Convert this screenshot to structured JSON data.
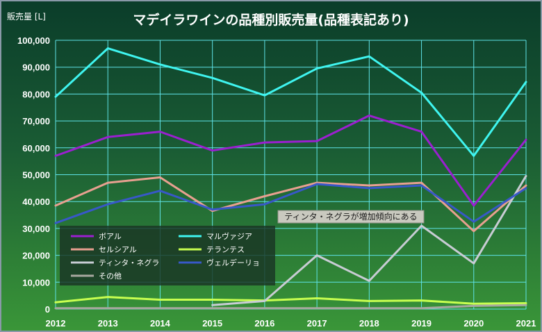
{
  "chart_data": {
    "type": "line",
    "title": "マデイラワインの品種別販売量(品種表記あり)",
    "ylabel": "販売量 [L]",
    "xlabel": "",
    "x": [
      2012,
      2013,
      2014,
      2015,
      2016,
      2017,
      2018,
      2019,
      2020,
      2021
    ],
    "x_tick_labels": [
      "2012",
      "2013",
      "2014",
      "2015",
      "2016",
      "2017",
      "2018",
      "2019",
      "2020",
      "2021"
    ],
    "ylim": [
      0,
      100000
    ],
    "y_ticks": [
      0,
      10000,
      20000,
      30000,
      40000,
      50000,
      60000,
      70000,
      80000,
      90000,
      100000
    ],
    "y_tick_labels": [
      "0",
      "10,000",
      "20,000",
      "30,000",
      "40,000",
      "50,000",
      "60,000",
      "70,000",
      "80,000",
      "90,000",
      "100,000"
    ],
    "grid": true,
    "legend_position": "bottom-left",
    "series": [
      {
        "name": "ボアル",
        "color": "#9b1fd0",
        "values": [
          57000,
          64000,
          66000,
          59000,
          62000,
          62500,
          72000,
          66000,
          38500,
          63000
        ]
      },
      {
        "name": "マルヴァジア",
        "color": "#3ff5f0",
        "values": [
          79000,
          97000,
          91000,
          86000,
          79500,
          89500,
          94000,
          80500,
          57000,
          84500
        ]
      },
      {
        "name": "セルシアル",
        "color": "#e8a090",
        "values": [
          38500,
          47000,
          49000,
          36500,
          42000,
          47000,
          46000,
          47000,
          29000,
          46000
        ]
      },
      {
        "name": "テランテス",
        "color": "#c8ff50",
        "values": [
          2500,
          4500,
          3500,
          3500,
          3200,
          4000,
          3000,
          3200,
          2000,
          2200
        ]
      },
      {
        "name": "ティンタ・ネグラ",
        "color": "#c8ccd4",
        "values": [
          null,
          null,
          null,
          1500,
          3000,
          20000,
          10500,
          31000,
          17000,
          49500
        ]
      },
      {
        "name": "ヴェルデーリョ",
        "color": "#3858c8",
        "values": [
          32000,
          39000,
          44000,
          37000,
          39000,
          46500,
          45000,
          46000,
          32500,
          45000
        ]
      },
      {
        "name": "その他",
        "color": "#a8a8a0",
        "values": [
          300,
          300,
          300,
          300,
          300,
          300,
          300,
          300,
          1200,
          1500
        ]
      }
    ],
    "annotation": {
      "text": "ティンタ・ネグラが増加傾向にある"
    }
  }
}
